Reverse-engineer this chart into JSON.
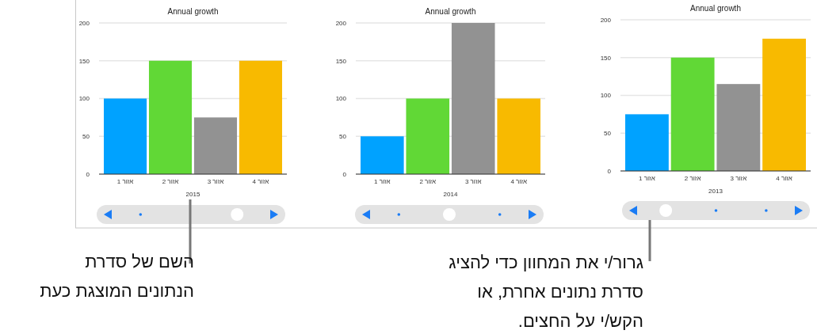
{
  "chart_data": [
    {
      "type": "bar",
      "title": "Annual growth",
      "categories": [
        "אזור 1",
        "אזור 2",
        "אזור 3",
        "אזור 4"
      ],
      "values": [
        100,
        150,
        75,
        150
      ],
      "colors": [
        "#00a2ff",
        "#61d836",
        "#929292",
        "#f8ba00"
      ],
      "xlabel": "2015",
      "ylim": [
        0,
        200
      ],
      "yticks": [
        0,
        50,
        100,
        150,
        200
      ],
      "grid": "y",
      "annotations": [
        "השם של סדרת\nהנתונים המוצגת כעת"
      ]
    },
    {
      "type": "bar",
      "title": "Annual growth",
      "categories": [
        "אזור 1",
        "אזור 2",
        "אזור 3",
        "אזור 4"
      ],
      "values": [
        50,
        100,
        200,
        100
      ],
      "colors": [
        "#00a2ff",
        "#61d836",
        "#929292",
        "#f8ba00"
      ],
      "xlabel": "2014",
      "ylim": [
        0,
        200
      ],
      "yticks": [
        0,
        50,
        100,
        150,
        200
      ],
      "grid": "y"
    },
    {
      "type": "bar",
      "title": "Annual growth",
      "categories": [
        "אזור 1",
        "אזור 2",
        "אזור 3",
        "אזור 4"
      ],
      "values": [
        75,
        150,
        115,
        175
      ],
      "colors": [
        "#00a2ff",
        "#61d836",
        "#929292",
        "#f8ba00"
      ],
      "xlabel": "2013",
      "ylim": [
        0,
        200
      ],
      "yticks": [
        0,
        50,
        100,
        150,
        200
      ],
      "grid": "y",
      "annotations": [
        "גרור/י את המחוון כדי להציג\nסדרת נתונים אחרת, או\nהקש/י על החצים."
      ]
    }
  ]
}
